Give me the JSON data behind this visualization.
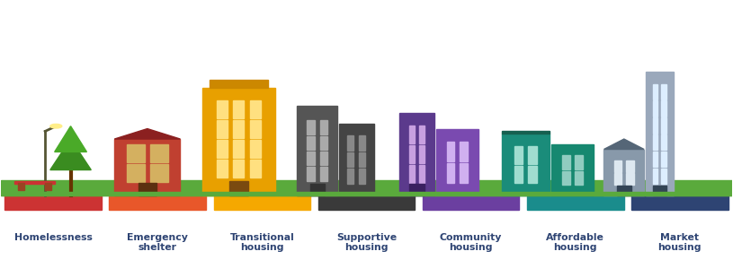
{
  "categories": [
    "Homelessness",
    "Emergency\nshelter",
    "Transitional\nhousing",
    "Supportive\nhousing",
    "Community\nhousing",
    "Affordable\nhousing",
    "Market\nhousing"
  ],
  "bar_colors": [
    "#cc3333",
    "#e8572a",
    "#f5a800",
    "#3a3a3a",
    "#6b3fa0",
    "#1a8c8c",
    "#2e4473"
  ],
  "background_color": "#ffffff",
  "grass_color": "#5aaa3c",
  "label_color": "#2e4473",
  "n_sections": 7
}
